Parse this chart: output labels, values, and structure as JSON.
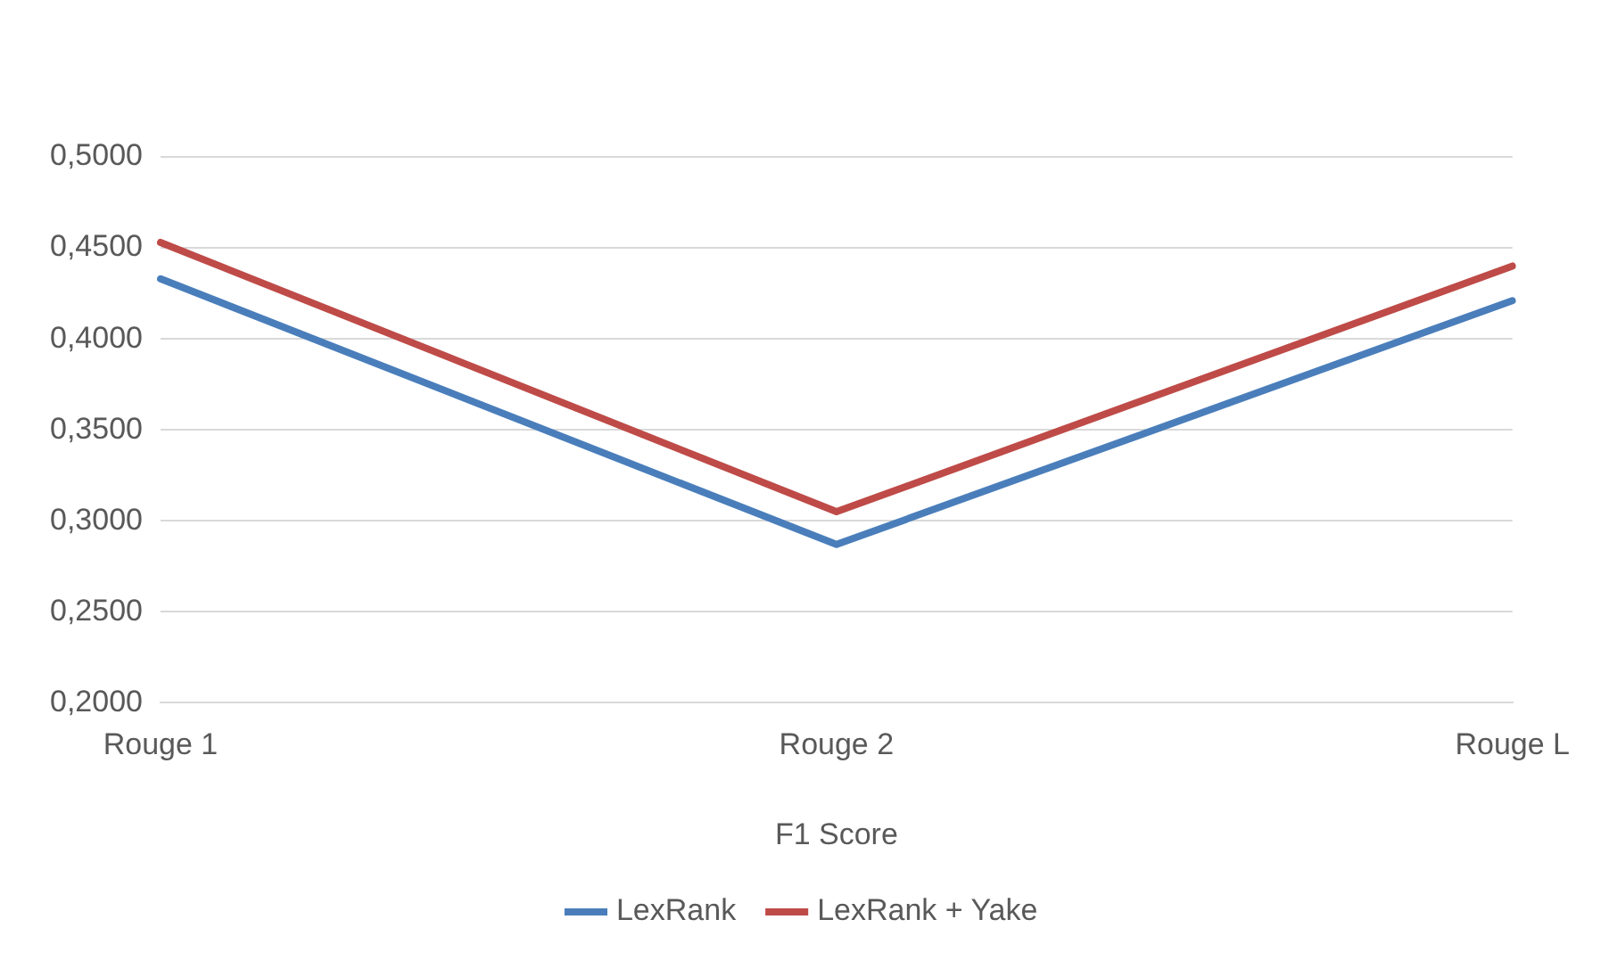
{
  "chart_data": {
    "type": "line",
    "xlabel": "F1 Score",
    "categories": [
      "Rouge 1",
      "Rouge 2",
      "Rouge L"
    ],
    "series": [
      {
        "name": "LexRank",
        "color": "#4a7ebb",
        "values": [
          0.433,
          0.287,
          0.421
        ]
      },
      {
        "name": "LexRank + Yake",
        "color": "#be4b48",
        "values": [
          0.453,
          0.305,
          0.44
        ]
      }
    ],
    "ylim": [
      0.2,
      0.5
    ],
    "yticks": [
      {
        "value": 0.2,
        "label": "0,2000"
      },
      {
        "value": 0.25,
        "label": "0,2500"
      },
      {
        "value": 0.3,
        "label": "0,3000"
      },
      {
        "value": 0.35,
        "label": "0,3500"
      },
      {
        "value": 0.4,
        "label": "0,4000"
      },
      {
        "value": 0.45,
        "label": "0,4500"
      },
      {
        "value": 0.5,
        "label": "0,5000"
      }
    ],
    "grid": "y",
    "legend": "bottom",
    "marker": "none",
    "line_style": "solid"
  }
}
